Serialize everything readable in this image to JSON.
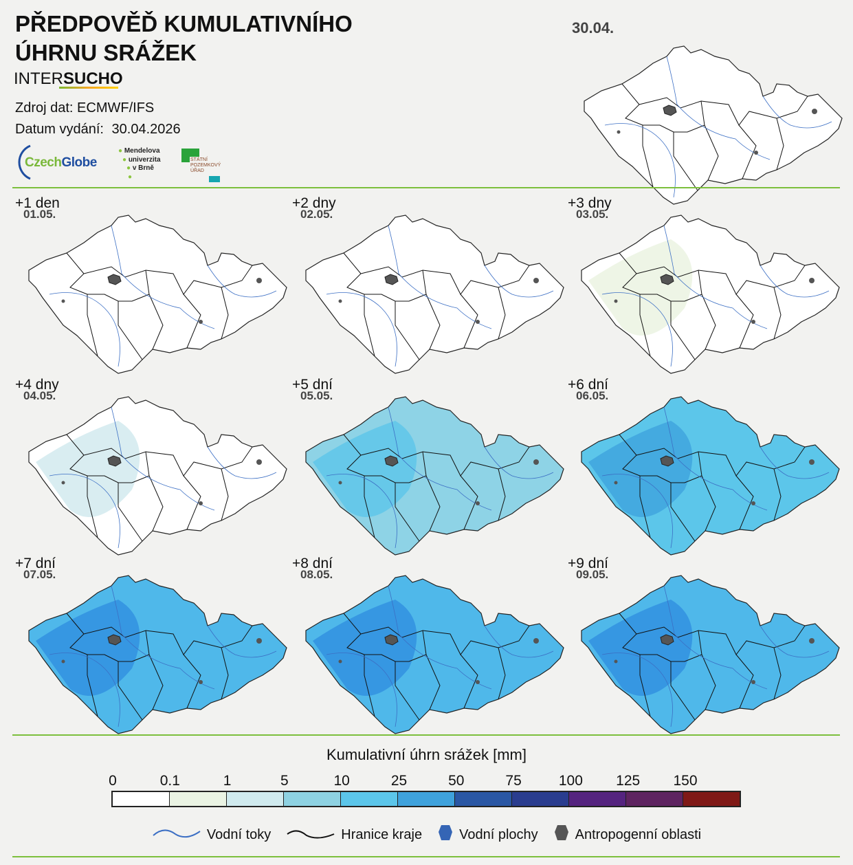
{
  "header": {
    "title_line1": "PŘEDPOVĚĎ KUMULATIVNÍHO",
    "title_line2": "ÚHRNU SRÁŽEK",
    "brand_a": "INTER",
    "brand_b": "SUCHO",
    "source": "Zdroj dat: ECMWF/IFS",
    "issue_label": "Datum vydání:",
    "issue_date": "30.04.2026",
    "logos": {
      "czechglobe_a": "Czech",
      "czechglobe_b": "Globe",
      "mendelu": [
        "Mendelova",
        "univerzita",
        "v Brně"
      ],
      "spu": [
        "STÁTNÍ",
        "POZEMKOVÝ",
        "ÚŘAD"
      ]
    }
  },
  "current_map": {
    "date": "30.04.",
    "fill": "#ffffff"
  },
  "panels": [
    {
      "label": "+1 den",
      "date": "01.05.",
      "fill": "#ffffff",
      "patch": "#ffffff"
    },
    {
      "label": "+2 dny",
      "date": "02.05.",
      "fill": "#ffffff",
      "patch": "#ffffff"
    },
    {
      "label": "+3 dny",
      "date": "03.05.",
      "fill": "#ffffff",
      "patch": "#eaf3e0"
    },
    {
      "label": "+4 dny",
      "date": "04.05.",
      "fill": "#ffffff",
      "patch": "#cfe9ee"
    },
    {
      "label": "+5 dní",
      "date": "05.05.",
      "fill": "#8ed3e6",
      "patch": "#5cc6ea"
    },
    {
      "label": "+6 dní",
      "date": "06.05.",
      "fill": "#5cc6ea",
      "patch": "#3fa2dd"
    },
    {
      "label": "+7 dní",
      "date": "07.05.",
      "fill": "#4fb8ea",
      "patch": "#2f8ee0"
    },
    {
      "label": "+8 dní",
      "date": "08.05.",
      "fill": "#4fb8ea",
      "patch": "#2f8ee0"
    },
    {
      "label": "+9 dní",
      "date": "09.05.",
      "fill": "#4fb8ea",
      "patch": "#2f8ee0"
    }
  ],
  "legend": {
    "title": "Kumulativní úhrn srážek [mm]",
    "ticks": [
      "0",
      "0.1",
      "1",
      "5",
      "10",
      "25",
      "50",
      "75",
      "100",
      "125",
      "150"
    ],
    "colors": [
      "#ffffff",
      "#eaf3e3",
      "#d0eaee",
      "#8ed2e2",
      "#5cc6ea",
      "#3fa2dc",
      "#2a57a4",
      "#2a3d8f",
      "#55237f",
      "#5e2360",
      "#7f1916"
    ],
    "items": [
      {
        "label": "Vodní toky",
        "icon": "river-line-icon",
        "color": "#3c6fc4"
      },
      {
        "label": "Hranice kraje",
        "icon": "border-line-icon",
        "color": "#111111"
      },
      {
        "label": "Vodní plochy",
        "icon": "water-body-icon",
        "color": "#3565b5"
      },
      {
        "label": "Antropogenní oblasti",
        "icon": "urban-area-icon",
        "color": "#555555"
      }
    ]
  }
}
